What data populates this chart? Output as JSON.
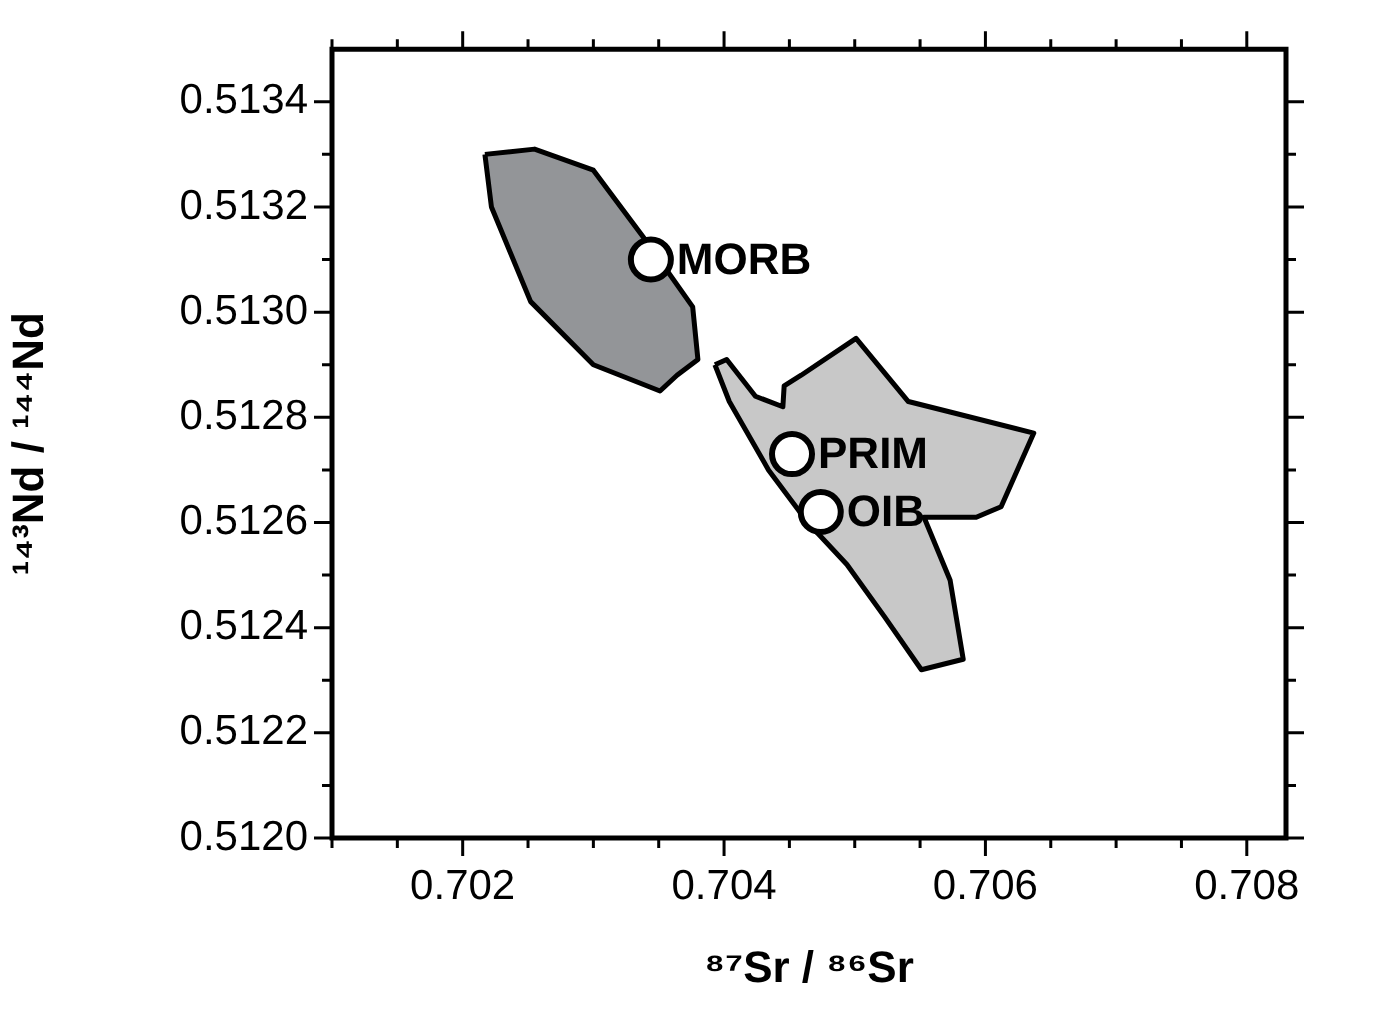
{
  "chart_data": {
    "type": "area",
    "xlabel": "⁸⁷Sr / ⁸⁶Sr",
    "ylabel": "¹⁴³Nd / ¹⁴⁴Nd",
    "xlim": [
      0.701,
      0.7083
    ],
    "ylim": [
      0.512,
      0.5135
    ],
    "xticks": [
      {
        "value": 0.701,
        "label": null
      },
      {
        "value": 0.7015,
        "label": null
      },
      0.702,
      {
        "value": 0.7025,
        "label": null
      },
      {
        "value": 0.703,
        "label": null
      },
      {
        "value": 0.7035,
        "label": null
      },
      0.704,
      {
        "value": 0.7045,
        "label": null
      },
      {
        "value": 0.705,
        "label": null
      },
      {
        "value": 0.7055,
        "label": null
      },
      0.706,
      {
        "value": 0.7065,
        "label": null
      },
      {
        "value": 0.707,
        "label": null
      },
      {
        "value": 0.7075,
        "label": null
      },
      0.708
    ],
    "yticks": [
      {
        "value": 0.512,
        "label": "0.5120"
      },
      {
        "value": 0.5121,
        "label": null
      },
      {
        "value": 0.5122,
        "label": "0.5122"
      },
      {
        "value": 0.5123,
        "label": null
      },
      {
        "value": 0.5124,
        "label": "0.5124"
      },
      {
        "value": 0.5125,
        "label": null
      },
      {
        "value": 0.5126,
        "label": "0.5126"
      },
      {
        "value": 0.5127,
        "label": null
      },
      {
        "value": 0.5128,
        "label": "0.5128"
      },
      {
        "value": 0.5129,
        "label": null
      },
      {
        "value": 0.513,
        "label": "0.5130"
      },
      {
        "value": 0.5131,
        "label": null
      },
      {
        "value": 0.5132,
        "label": "0.5132"
      },
      {
        "value": 0.5133,
        "label": null
      },
      {
        "value": 0.5134,
        "label": "0.5134"
      }
    ],
    "grid": false,
    "legend": false,
    "series": [
      {
        "color": "#939598",
        "x": [
          0.70217,
          0.70255,
          0.703,
          0.70339,
          0.70376,
          0.7038,
          0.70364,
          0.70351,
          0.703,
          0.70252,
          0.70222
        ],
        "values": [
          0.5133,
          0.51331,
          0.51327,
          0.51314,
          0.51301,
          0.51291,
          0.51288,
          0.51285,
          0.5129,
          0.51302,
          0.5132
        ]
      },
      {
        "color": "#c8c8c8",
        "x": [
          0.70393,
          0.70402,
          0.70424,
          0.70445,
          0.70446,
          0.70459,
          0.70501,
          0.70541,
          0.70573,
          0.70637,
          0.70612,
          0.70593,
          0.70553,
          0.70573,
          0.70583,
          0.70551,
          0.70523,
          0.70494,
          0.70464,
          0.70434,
          0.70404
        ],
        "values": [
          0.5129,
          0.51291,
          0.51284,
          0.51282,
          0.51286,
          0.51288,
          0.51295,
          0.51283,
          0.51281,
          0.51277,
          0.51263,
          0.51261,
          0.51261,
          0.51249,
          0.51234,
          0.51232,
          0.51242,
          0.51252,
          0.5126,
          0.5127,
          0.51283
        ]
      },
      {
        "type": "scatter",
        "color": "#ffffff",
        "marker": "circle",
        "x": [
          0.70344,
          0.70452,
          0.70474
        ],
        "values": [
          0.5131,
          0.51273,
          0.51262
        ]
      }
    ],
    "annotations": [
      {
        "text": "MORB",
        "x": 0.70344,
        "y": 0.5131
      },
      {
        "text": "PRIM",
        "x": 0.70452,
        "y": 0.51273
      },
      {
        "text": "OIB",
        "x": 0.70474,
        "y": 0.51262
      }
    ]
  }
}
